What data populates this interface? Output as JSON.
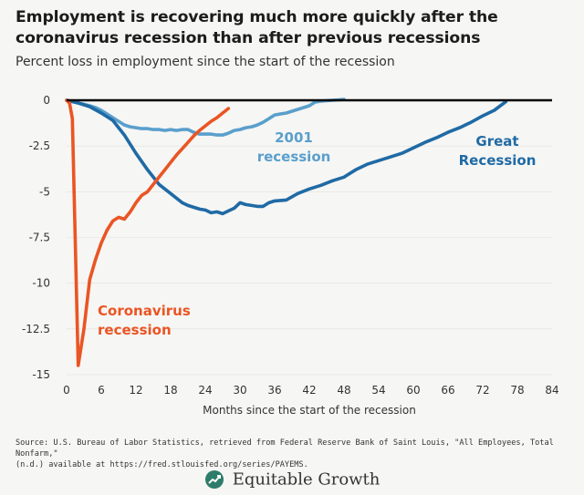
{
  "chart_data": {
    "type": "line",
    "title": "Employment is recovering much more quickly after the coronavirus recession than after previous recessions",
    "subtitle": "Percent loss in employment since the start of the recession",
    "xlabel": "Months since the start of the recession",
    "ylabel": "",
    "xlim": [
      0,
      84
    ],
    "ylim": [
      -15,
      0
    ],
    "xticks": [
      0,
      6,
      12,
      18,
      24,
      30,
      36,
      42,
      48,
      54,
      60,
      66,
      72,
      78,
      84
    ],
    "yticks": [
      0,
      -2.5,
      -5,
      -7.5,
      -10,
      -12.5,
      -15
    ],
    "ytick_labels": [
      "0",
      "-2.5",
      "-5",
      "-7.5",
      "-10",
      "-12.5",
      "-15"
    ],
    "series": [
      {
        "name": "2001 recession",
        "label_lines": [
          "2001",
          "recession"
        ],
        "color": "#5a9fcc",
        "x": [
          0,
          1,
          2,
          3,
          4,
          5,
          6,
          7,
          8,
          9,
          10,
          11,
          12,
          13,
          14,
          15,
          16,
          17,
          18,
          19,
          20,
          21,
          22,
          23,
          24,
          25,
          26,
          27,
          28,
          29,
          30,
          31,
          32,
          33,
          34,
          35,
          36,
          37,
          38,
          39,
          40,
          41,
          42,
          43,
          44,
          45,
          46,
          47,
          48
        ],
        "y": [
          0,
          -0.07,
          -0.15,
          -0.22,
          -0.3,
          -0.4,
          -0.55,
          -0.75,
          -0.95,
          -1.15,
          -1.35,
          -1.45,
          -1.5,
          -1.55,
          -1.55,
          -1.6,
          -1.6,
          -1.65,
          -1.6,
          -1.65,
          -1.6,
          -1.6,
          -1.75,
          -1.85,
          -1.85,
          -1.85,
          -1.9,
          -1.9,
          -1.8,
          -1.65,
          -1.6,
          -1.5,
          -1.45,
          -1.35,
          -1.2,
          -1.0,
          -0.8,
          -0.75,
          -0.7,
          -0.6,
          -0.5,
          -0.4,
          -0.3,
          -0.1,
          -0.05,
          -0.02,
          0,
          0.02,
          0.05
        ]
      },
      {
        "name": "Great Recession",
        "label_lines": [
          "Great",
          "Recession"
        ],
        "color": "#1f6aa5",
        "x": [
          0,
          2,
          4,
          6,
          8,
          10,
          12,
          14,
          16,
          18,
          20,
          21,
          22,
          23,
          24,
          25,
          26,
          27,
          28,
          29,
          30,
          31,
          32,
          33,
          34,
          35,
          36,
          38,
          40,
          42,
          44,
          46,
          48,
          50,
          52,
          54,
          56,
          58,
          60,
          62,
          64,
          66,
          68,
          70,
          72,
          74,
          76
        ],
        "y": [
          0,
          -0.15,
          -0.35,
          -0.7,
          -1.1,
          -1.9,
          -2.9,
          -3.8,
          -4.6,
          -5.1,
          -5.6,
          -5.75,
          -5.85,
          -5.95,
          -6.0,
          -6.15,
          -6.1,
          -6.2,
          -6.05,
          -5.9,
          -5.6,
          -5.7,
          -5.75,
          -5.8,
          -5.8,
          -5.6,
          -5.5,
          -5.45,
          -5.1,
          -4.85,
          -4.65,
          -4.4,
          -4.2,
          -3.8,
          -3.5,
          -3.3,
          -3.1,
          -2.9,
          -2.6,
          -2.3,
          -2.05,
          -1.75,
          -1.5,
          -1.2,
          -0.85,
          -0.55,
          -0.08
        ]
      },
      {
        "name": "Coronavirus recession",
        "label_lines": [
          "Coronavirus",
          "recession"
        ],
        "color": "#ea5524",
        "x": [
          0,
          0.5,
          1,
          2,
          3,
          4,
          5,
          6,
          7,
          8,
          9,
          10,
          11,
          12,
          13,
          14,
          15,
          16,
          17,
          18,
          19,
          20,
          21,
          22,
          23,
          24,
          25,
          26,
          27,
          28
        ],
        "y": [
          0,
          -0.15,
          -1.0,
          -14.5,
          -12.5,
          -9.8,
          -8.7,
          -7.8,
          -7.1,
          -6.6,
          -6.4,
          -6.5,
          -6.1,
          -5.6,
          -5.2,
          -5.0,
          -4.6,
          -4.2,
          -3.8,
          -3.4,
          -3.0,
          -2.65,
          -2.3,
          -1.95,
          -1.65,
          -1.4,
          -1.15,
          -0.95,
          -0.7,
          -0.45
        ]
      }
    ]
  },
  "footer": {
    "source_line1": "Source: U.S. Bureau of Labor Statistics, retrieved from Federal Reserve Bank of Saint Louis, \"All Employees, Total Nonfarm,\"",
    "source_line2": "(n.d.) available at https://fred.stlouisfed.org/series/PAYEMS.",
    "logo_text": "Equitable Growth"
  }
}
